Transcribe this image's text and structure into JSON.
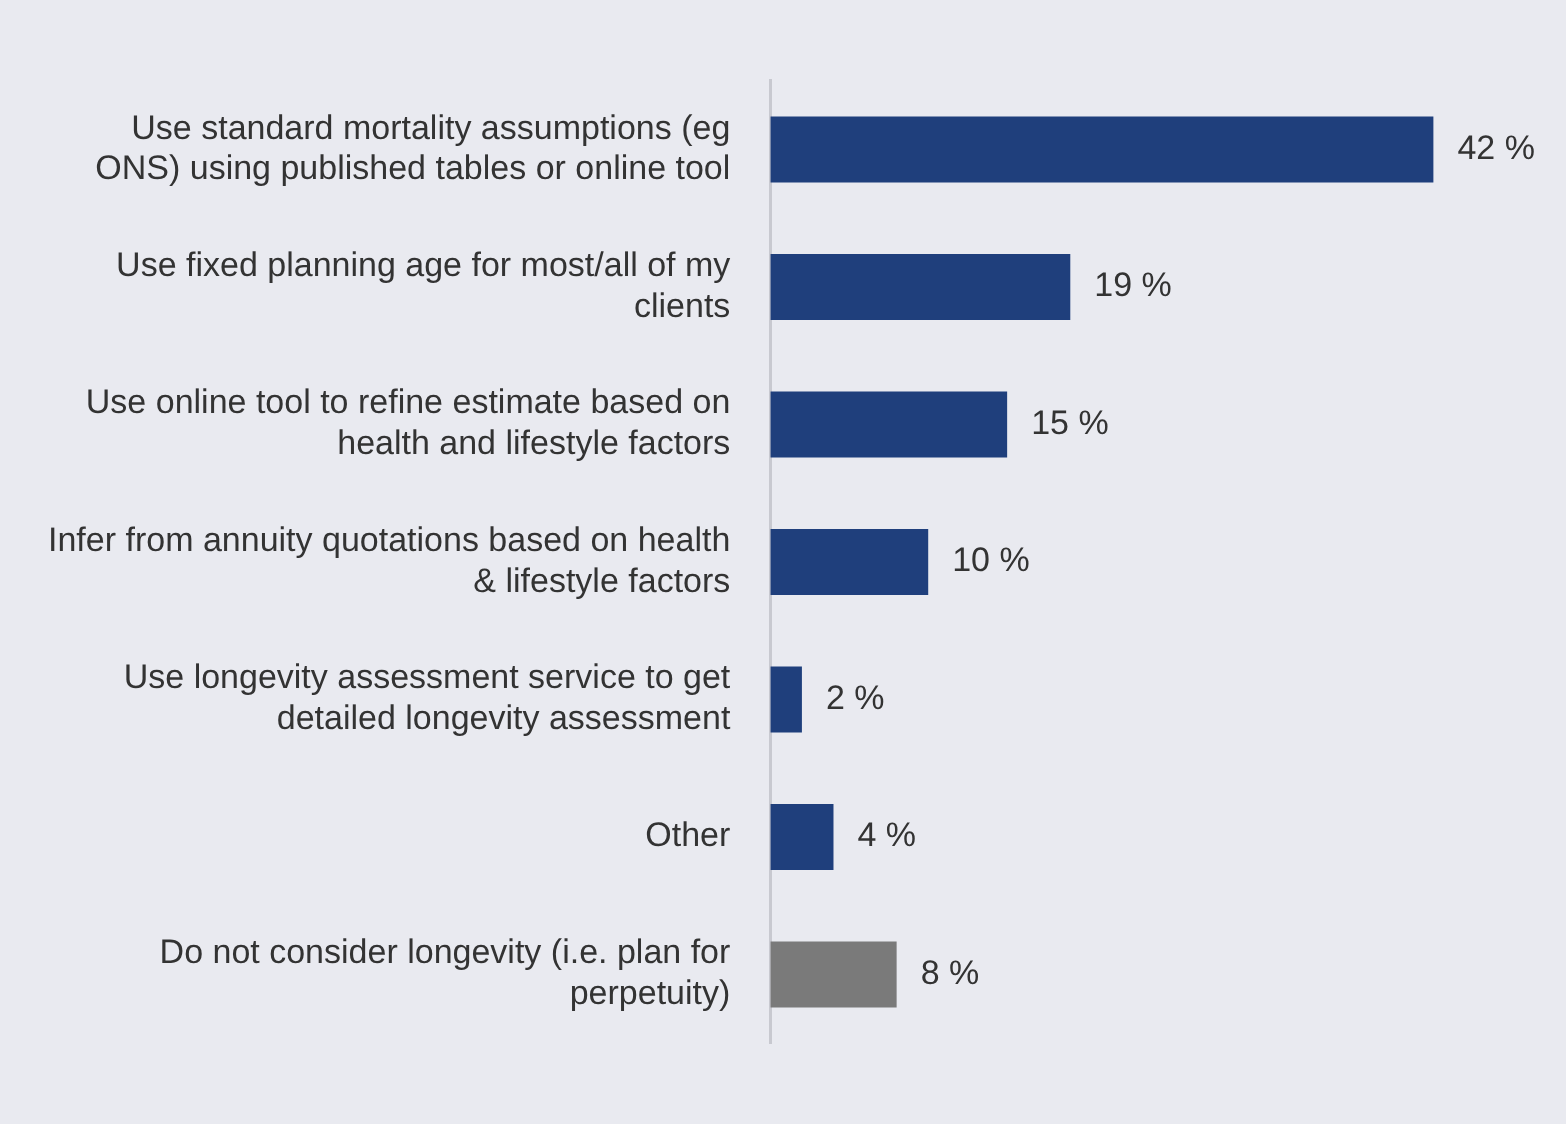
{
  "chart_data": {
    "type": "bar",
    "orientation": "horizontal",
    "categories": [
      "Use standard mortality assumptions (eg ONS) using published tables or online tool",
      "Use fixed planning age for most/all of my clients",
      "Use online tool to refine estimate based on health and lifestyle factors",
      "Infer from annuity quotations based on health & lifestyle factors",
      "Use longevity assessment service to get detailed longevity assessment",
      "Other",
      "Do not consider longevity (i.e. plan for perpetuity)"
    ],
    "values": [
      42,
      19,
      15,
      10,
      2,
      4,
      8
    ],
    "colors": [
      "#1f3f7c",
      "#1f3f7c",
      "#1f3f7c",
      "#1f3f7c",
      "#1f3f7c",
      "#1f3f7c",
      "#7a7a7a"
    ],
    "value_labels": [
      "42 %",
      "19 %",
      "15 %",
      "10 %",
      "2 %",
      "4 %",
      "8 %"
    ],
    "legend": false,
    "tick_labels": "y"
  }
}
